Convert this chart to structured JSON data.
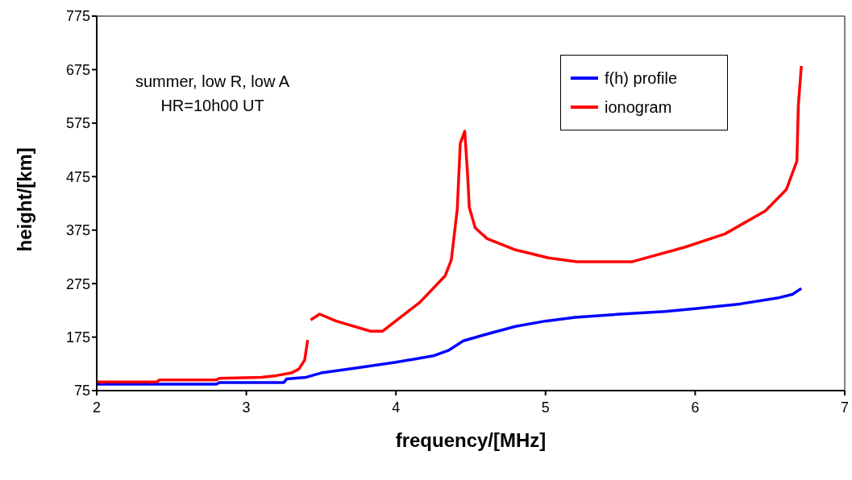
{
  "chart_data": {
    "type": "line",
    "xlabel": "frequency/[MHz]",
    "ylabel": "height/[km]",
    "xlim": [
      2,
      7
    ],
    "xticks": [
      2,
      3,
      4,
      5,
      6,
      7
    ],
    "ylim": [
      75,
      775
    ],
    "yticks": [
      75,
      175,
      275,
      375,
      475,
      575,
      675,
      775
    ],
    "legend": "top right",
    "marker": "none",
    "line_style": "solid",
    "annotations": [
      "summer, low R, low A",
      "HR=10h00 UT"
    ],
    "series": [
      {
        "name": "f(h) profile",
        "color": "#0000ff",
        "x": [
          2.0,
          2.8,
          2.82,
          3.25,
          3.27,
          3.4,
          3.5,
          3.75,
          4.0,
          4.25,
          4.35,
          4.45,
          4.6,
          4.8,
          5.0,
          5.2,
          5.5,
          5.8,
          6.0,
          6.3,
          6.55,
          6.65,
          6.71
        ],
        "values": [
          87,
          87,
          90,
          90,
          97,
          100,
          108,
          118,
          128,
          140,
          150,
          168,
          180,
          195,
          205,
          212,
          218,
          223,
          228,
          237,
          248,
          255,
          266
        ]
      },
      {
        "name": "ionogram",
        "color": "#ff0000",
        "x": [
          2.0,
          2.4,
          2.42,
          2.8,
          2.82,
          3.1,
          3.2,
          3.3,
          3.35,
          3.39,
          3.41,
          3.42,
          3.43,
          3.49,
          3.6,
          3.83,
          3.91,
          4.16,
          4.33,
          4.37,
          4.41,
          4.43,
          4.46,
          4.48,
          4.49,
          4.53,
          4.61,
          4.8,
          5.02,
          5.21,
          5.58,
          5.93,
          6.2,
          6.47,
          6.61,
          6.68,
          6.69,
          6.71
        ],
        "values": [
          91,
          91,
          95,
          95,
          98,
          100,
          103,
          108,
          115,
          132,
          170,
          null,
          207,
          218,
          205,
          186,
          186,
          240,
          290,
          319,
          414,
          537,
          560,
          474,
          418,
          379,
          359,
          338,
          323,
          316,
          316,
          343,
          368,
          411,
          451,
          504,
          609,
          682
        ]
      }
    ]
  }
}
